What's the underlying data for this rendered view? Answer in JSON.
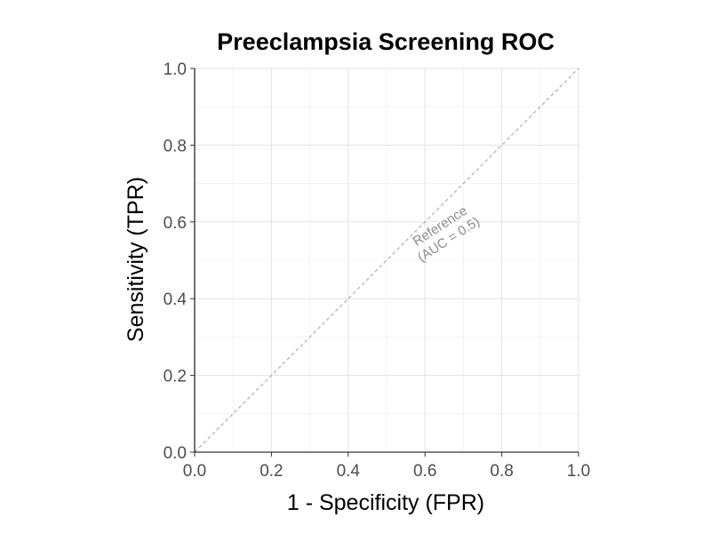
{
  "chart_data": {
    "type": "line",
    "title": "Preeclampsia Screening ROC",
    "xlabel": "1 - Specificity (FPR)",
    "ylabel": "Sensitivity (TPR)",
    "xlim": [
      0,
      1
    ],
    "ylim": [
      0,
      1
    ],
    "x_ticks": [
      0.0,
      0.2,
      0.4,
      0.6,
      0.8,
      1.0
    ],
    "y_ticks": [
      0.0,
      0.2,
      0.4,
      0.6,
      0.8,
      1.0
    ],
    "x_tick_labels": [
      "0.0",
      "0.2",
      "0.4",
      "0.6",
      "0.8",
      "1.0"
    ],
    "y_tick_labels": [
      "0.0",
      "0.2",
      "0.4",
      "0.6",
      "0.8",
      "1.0"
    ],
    "grid": true,
    "series": [
      {
        "x": [
          0,
          1
        ],
        "y": [
          0,
          1
        ],
        "style": "dashed",
        "color": "#999999"
      }
    ],
    "annotations": [
      {
        "lines": [
          "Reference",
          "(AUC = 0.5)"
        ],
        "x": 0.65,
        "y": 0.6,
        "color": "#8c8c8c"
      }
    ]
  }
}
